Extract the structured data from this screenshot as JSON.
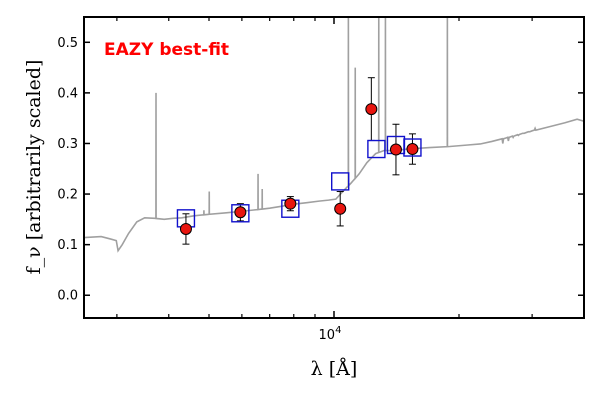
{
  "chart_data": {
    "type": "scatter",
    "xlabel": "λ [Å]",
    "ylabel": "f_ν [arbitrarily scaled]",
    "xscale": "log",
    "xlim": [
      2500,
      40000
    ],
    "ylim": [
      -0.045,
      0.55
    ],
    "yticks": [
      0.0,
      0.1,
      0.2,
      0.3,
      0.4,
      0.5
    ],
    "ytick_labels": [
      "0.0",
      "0.1",
      "0.2",
      "0.3",
      "0.4",
      "0.5"
    ],
    "xticks_major": [
      10000
    ],
    "xtick_labels_major": [
      "10^4"
    ],
    "xticks_minor": [
      3000,
      4000,
      5000,
      6000,
      7000,
      8000,
      9000,
      20000,
      30000,
      40000
    ],
    "grid": false,
    "annotation": {
      "text": "EAZY best-fit",
      "color": "#ff0000",
      "position": "top-left"
    },
    "observed": {
      "marker": "circle",
      "face_color": "#e8150f",
      "edge_color": "#000000",
      "x": [
        4400,
        5950,
        7850,
        10350,
        12300,
        14100,
        15450
      ],
      "y": [
        0.131,
        0.164,
        0.181,
        0.171,
        0.368,
        0.288,
        0.289
      ],
      "yerr": [
        0.03,
        0.017,
        0.014,
        0.034,
        0.062,
        0.05,
        0.03
      ]
    },
    "model_photometry": {
      "marker": "square",
      "edge_color": "#1111cc",
      "x": [
        4400,
        5950,
        7850,
        10350,
        12650,
        14100,
        15450
      ],
      "y": [
        0.152,
        0.162,
        0.171,
        0.225,
        0.289,
        0.297,
        0.292
      ]
    },
    "template": {
      "style": "line",
      "color": "#a0a0a0",
      "continuum": [
        [
          2500,
          0.114
        ],
        [
          2750,
          0.116
        ],
        [
          2900,
          0.111
        ],
        [
          2990,
          0.108
        ],
        [
          3020,
          0.088
        ],
        [
          3090,
          0.1
        ],
        [
          3200,
          0.122
        ],
        [
          3350,
          0.145
        ],
        [
          3500,
          0.153
        ],
        [
          3700,
          0.152
        ],
        [
          3900,
          0.15
        ],
        [
          4100,
          0.152
        ],
        [
          4300,
          0.153
        ],
        [
          4600,
          0.157
        ],
        [
          5000,
          0.16
        ],
        [
          5500,
          0.163
        ],
        [
          6000,
          0.166
        ],
        [
          6500,
          0.169
        ],
        [
          7000,
          0.172
        ],
        [
          7500,
          0.176
        ],
        [
          8000,
          0.18
        ],
        [
          8600,
          0.183
        ],
        [
          9200,
          0.186
        ],
        [
          9700,
          0.188
        ],
        [
          10100,
          0.19
        ],
        [
          10500,
          0.205
        ],
        [
          11000,
          0.222
        ],
        [
          11500,
          0.24
        ],
        [
          12000,
          0.262
        ],
        [
          12600,
          0.28
        ],
        [
          13200,
          0.286
        ],
        [
          14000,
          0.286
        ],
        [
          15000,
          0.289
        ],
        [
          17000,
          0.292
        ],
        [
          19000,
          0.294
        ],
        [
          21000,
          0.297
        ],
        [
          22500,
          0.299
        ],
        [
          24000,
          0.304
        ],
        [
          26000,
          0.311
        ],
        [
          28000,
          0.318
        ],
        [
          30000,
          0.325
        ],
        [
          33000,
          0.333
        ],
        [
          36000,
          0.341
        ],
        [
          38500,
          0.348
        ],
        [
          40000,
          0.344
        ]
      ],
      "emission_lines": [
        [
          3727,
          0.4
        ],
        [
          4861,
          0.168
        ],
        [
          5007,
          0.205
        ],
        [
          6563,
          0.24
        ],
        [
          6716,
          0.21
        ],
        [
          10830,
          0.55
        ],
        [
          11250,
          0.45
        ],
        [
          12818,
          0.55
        ],
        [
          13300,
          0.55
        ],
        [
          18751,
          0.55
        ]
      ],
      "absorption_features": [
        [
          25500,
          0.3
        ],
        [
          26300,
          0.305
        ],
        [
          27000,
          0.312
        ],
        [
          27800,
          0.316
        ],
        [
          28600,
          0.32
        ],
        [
          29500,
          0.323
        ],
        [
          30500,
          0.33
        ]
      ]
    }
  }
}
